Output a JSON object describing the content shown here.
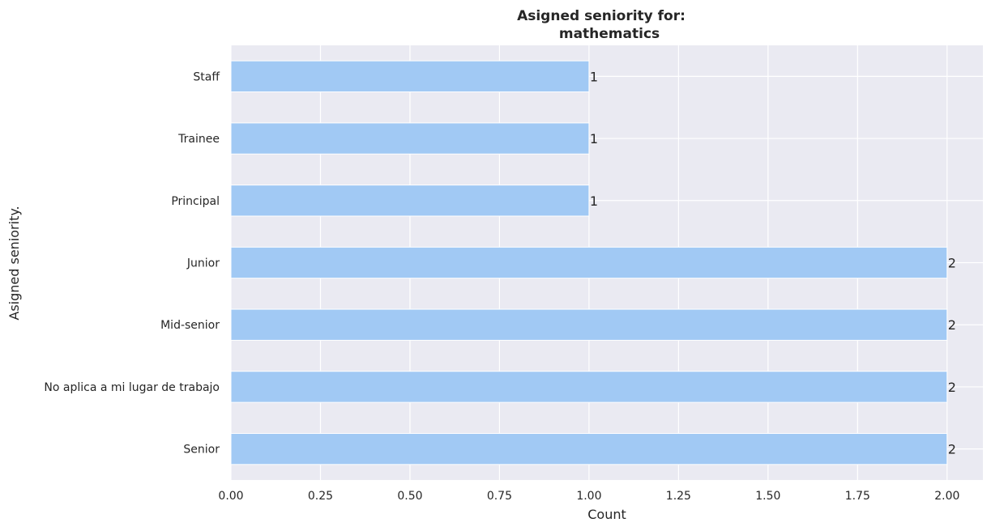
{
  "chart_data": {
    "type": "bar",
    "orientation": "horizontal",
    "title_lines": [
      "Asigned seniority for:",
      "mathematics"
    ],
    "xlabel": "Count",
    "ylabel": "Asigned seniority.",
    "categories": [
      "Staff",
      "Trainee",
      "Principal",
      "Junior",
      "Mid-senior",
      "No aplica a mi lugar de trabajo",
      "Senior"
    ],
    "values": [
      1,
      1,
      1,
      2,
      2,
      2,
      2
    ],
    "data_labels": [
      "1",
      "1",
      "1",
      "2",
      "2",
      "2",
      "2"
    ],
    "xlim": [
      0,
      2.1
    ],
    "xticks": [
      0,
      0.25,
      0.5,
      0.75,
      1.0,
      1.25,
      1.5,
      1.75,
      2.0
    ],
    "xtick_labels": [
      "0.00",
      "0.25",
      "0.50",
      "0.75",
      "1.00",
      "1.25",
      "1.50",
      "1.75",
      "2.00"
    ],
    "grid": true,
    "bar_color": "#a1c9f4",
    "background_color": "#eaeaf2"
  }
}
